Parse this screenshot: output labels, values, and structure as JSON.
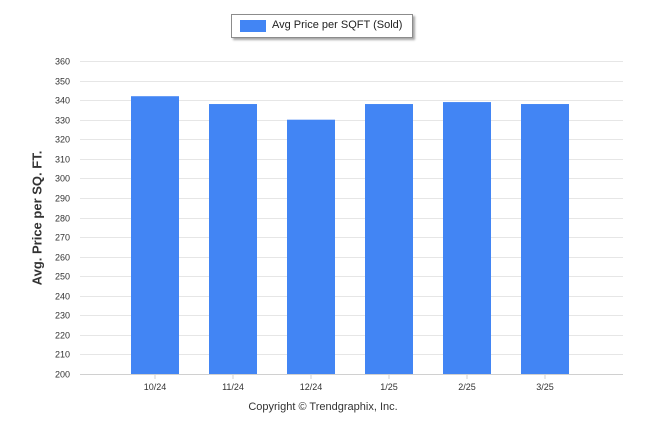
{
  "chart_data": {
    "type": "bar",
    "categories": [
      "10/24",
      "11/24",
      "12/24",
      "1/25",
      "2/25",
      "3/25"
    ],
    "series": [
      {
        "name": "Avg Price per SQFT (Sold)",
        "values": [
          342,
          338,
          330,
          338,
          339,
          338
        ]
      }
    ],
    "ylabel": "Avg. Price per SQ. FT.",
    "ylim": [
      200,
      360
    ],
    "yticks": [
      200,
      210,
      220,
      230,
      240,
      250,
      260,
      270,
      280,
      290,
      300,
      310,
      320,
      330,
      340,
      350,
      360
    ],
    "grid": true,
    "legend_position": "top-center",
    "bar_color": "#4285f4",
    "grid_color": "#e6e6e6"
  },
  "footer": {
    "copyright": "Copyright © Trendgraphix, Inc."
  }
}
